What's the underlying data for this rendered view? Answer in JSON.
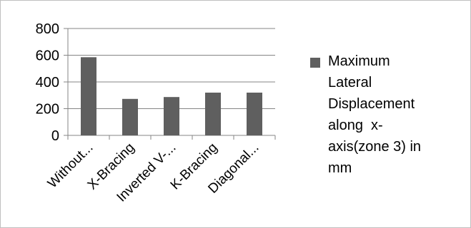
{
  "chart_data": {
    "type": "bar",
    "categories": [
      "Without...",
      "X-Bracing",
      "Inverted V-...",
      "K-Bracing",
      "Diagonal..."
    ],
    "series": [
      {
        "name": "Maximum Lateral Displacement along  x-axis(zone 3) in mm",
        "values": [
          585,
          273,
          287,
          320,
          320
        ]
      }
    ],
    "yticks": [
      0,
      200,
      400,
      600,
      800
    ],
    "ylim": [
      0,
      800
    ],
    "grid": true,
    "legend_position": "right",
    "bar_color": "#5f5f5f",
    "grid_color": "#858585",
    "axis_color": "#858585"
  },
  "legend": {
    "text": "Maximum\nLateral\nDisplacement\nalong  x-\naxis(zone 3) in\nmm"
  }
}
